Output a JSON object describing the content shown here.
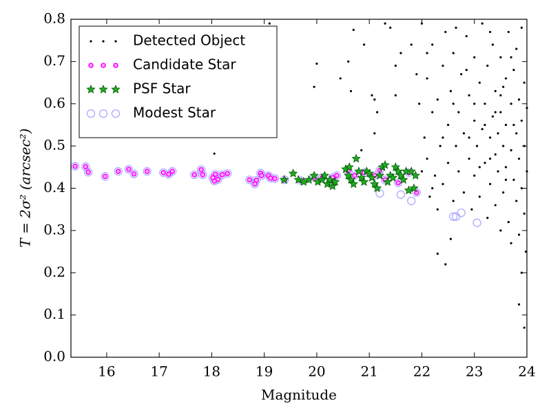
{
  "chart_data": {
    "type": "scatter",
    "x_label": "Magnitude",
    "y_label": "T = 2σ² (arcsec²)",
    "xlim": [
      15.32,
      24
    ],
    "ylim": [
      0,
      0.8
    ],
    "xticks": [
      16,
      17,
      18,
      19,
      20,
      21,
      22,
      23,
      24
    ],
    "yticks": [
      {
        "value": 0,
        "label": "0.0"
      },
      0.1,
      0.2,
      0.3,
      0.4,
      0.5,
      0.6,
      0.7,
      0.8
    ],
    "legend": "upper left",
    "series": [
      {
        "name": "Detected Object",
        "color": "#000000",
        "marker": "dot",
        "x": [
          18.05,
          19.95,
          20.0,
          20.45,
          20.6,
          20.65,
          20.7,
          20.9,
          20.85,
          21.1,
          21.15,
          21.05,
          21.1,
          21.5,
          21.6,
          21.8,
          21.3,
          21.4,
          21.5,
          22.3,
          22.45,
          22.55,
          23.85,
          23.95,
          23.9,
          23.98,
          19.2,
          19.1,
          22.0,
          22.05,
          22.1,
          22.1,
          22.15,
          22.2,
          22.2,
          22.25,
          22.3,
          22.3,
          22.35,
          22.4,
          22.4,
          22.45,
          22.5,
          22.5,
          22.55,
          22.6,
          22.6,
          22.65,
          22.7,
          22.7,
          22.75,
          22.8,
          22.8,
          22.85,
          22.9,
          22.9,
          22.95,
          23.0,
          23.0,
          23.0,
          23.05,
          23.1,
          23.1,
          23.15,
          23.15,
          23.2,
          23.2,
          23.25,
          23.25,
          23.3,
          23.3,
          23.35,
          23.35,
          23.4,
          23.4,
          23.4,
          23.45,
          23.45,
          23.5,
          23.5,
          23.5,
          23.55,
          23.55,
          23.6,
          23.6,
          23.6,
          23.65,
          23.65,
          23.7,
          23.7,
          23.7,
          23.75,
          23.75,
          23.8,
          23.8,
          23.8,
          23.85,
          23.85,
          23.85,
          23.9,
          23.9,
          23.9,
          23.95,
          23.95,
          23.95,
          24.0,
          24.0,
          23.0,
          22.9,
          23.3,
          23.5,
          23.2,
          22.6,
          22.4,
          23.6,
          23.4,
          23.1,
          22.85,
          23.75,
          23.55,
          22.1,
          22.2,
          21.95,
          22.0,
          21.9,
          23.3,
          23.7,
          22.65
        ],
        "values": [
          0.482,
          0.64,
          0.695,
          0.66,
          0.7,
          0.63,
          0.775,
          0.74,
          0.49,
          0.61,
          0.58,
          0.62,
          0.53,
          0.62,
          0.72,
          0.74,
          0.79,
          0.78,
          0.69,
          0.245,
          0.22,
          0.28,
          0.125,
          0.07,
          0.2,
          0.25,
          0.715,
          0.79,
          0.79,
          0.52,
          0.47,
          0.66,
          0.38,
          0.58,
          0.74,
          0.43,
          0.61,
          0.35,
          0.5,
          0.69,
          0.41,
          0.77,
          0.55,
          0.46,
          0.63,
          0.37,
          0.72,
          0.5,
          0.44,
          0.58,
          0.67,
          0.39,
          0.53,
          0.76,
          0.47,
          0.62,
          0.35,
          0.56,
          0.71,
          0.43,
          0.5,
          0.65,
          0.38,
          0.54,
          0.79,
          0.46,
          0.6,
          0.33,
          0.69,
          0.52,
          0.41,
          0.57,
          0.74,
          0.48,
          0.36,
          0.63,
          0.53,
          0.44,
          0.58,
          0.3,
          0.71,
          0.5,
          0.39,
          0.66,
          0.45,
          0.55,
          0.32,
          0.77,
          0.49,
          0.6,
          0.27,
          0.42,
          0.68,
          0.53,
          0.37,
          0.73,
          0.47,
          0.29,
          0.61,
          0.4,
          0.56,
          0.78,
          0.34,
          0.5,
          0.65,
          0.44,
          0.59,
          0.6,
          0.52,
          0.47,
          0.62,
          0.55,
          0.6,
          0.52,
          0.42,
          0.58,
          0.45,
          0.68,
          0.55,
          0.64,
          0.72,
          0.4,
          0.6,
          0.44,
          0.67,
          0.77,
          0.71,
          0.78
        ]
      },
      {
        "name": "Candidate Star",
        "color": "#ff00ff",
        "marker": "circle",
        "x": [
          15.4,
          15.6,
          15.65,
          15.97,
          16.22,
          16.42,
          16.52,
          16.77,
          17.08,
          17.18,
          17.25,
          17.67,
          17.8,
          17.83,
          18.02,
          18.05,
          18.07,
          18.12,
          18.2,
          18.3,
          18.72,
          18.82,
          18.85,
          18.93,
          18.95,
          19.08,
          19.12,
          19.2,
          19.39,
          19.7,
          19.95,
          20.1,
          20.3,
          20.38,
          20.6,
          20.72,
          20.9,
          21.1,
          21.2,
          21.3,
          21.55,
          21.75,
          21.9
        ],
        "values": [
          0.452,
          0.451,
          0.438,
          0.428,
          0.44,
          0.445,
          0.434,
          0.44,
          0.437,
          0.433,
          0.44,
          0.432,
          0.444,
          0.432,
          0.425,
          0.417,
          0.433,
          0.421,
          0.432,
          0.435,
          0.42,
          0.41,
          0.419,
          0.436,
          0.43,
          0.43,
          0.424,
          0.423,
          0.42,
          0.418,
          0.425,
          0.425,
          0.425,
          0.43,
          0.44,
          0.43,
          0.437,
          0.43,
          0.442,
          0.42,
          0.413,
          0.437,
          0.39
        ]
      },
      {
        "name": "PSF Star",
        "color": "#22aa22",
        "marker": "star",
        "x": [
          19.38,
          19.55,
          19.65,
          19.75,
          19.85,
          19.95,
          20.02,
          20.1,
          20.15,
          20.2,
          20.25,
          20.3,
          20.35,
          20.55,
          20.6,
          20.62,
          20.65,
          20.7,
          20.75,
          20.8,
          20.85,
          20.9,
          20.95,
          21.0,
          21.05,
          21.1,
          21.15,
          21.2,
          21.25,
          21.3,
          21.35,
          21.4,
          21.45,
          21.5,
          21.55,
          21.6,
          21.65,
          21.7,
          21.75,
          21.8,
          21.85,
          21.88
        ],
        "values": [
          0.42,
          0.435,
          0.42,
          0.415,
          0.42,
          0.43,
          0.415,
          0.42,
          0.43,
          0.41,
          0.42,
          0.405,
          0.415,
          0.445,
          0.43,
          0.45,
          0.42,
          0.41,
          0.47,
          0.44,
          0.425,
          0.415,
          0.44,
          0.435,
          0.425,
          0.41,
          0.4,
          0.43,
          0.45,
          0.455,
          0.415,
          0.43,
          0.425,
          0.45,
          0.44,
          0.43,
          0.42,
          0.44,
          0.395,
          0.44,
          0.4,
          0.43
        ]
      },
      {
        "name": "Modest Star",
        "color": "#aaaaff",
        "marker": "ring",
        "x": [
          15.4,
          15.6,
          15.65,
          15.97,
          16.22,
          16.42,
          16.52,
          16.77,
          17.08,
          17.18,
          17.25,
          17.67,
          17.8,
          17.83,
          18.02,
          18.05,
          18.07,
          18.12,
          18.2,
          18.3,
          18.72,
          18.82,
          18.85,
          18.93,
          18.95,
          19.08,
          19.12,
          19.2,
          19.39,
          19.7,
          19.95,
          20.1,
          20.3,
          20.38,
          20.6,
          20.72,
          20.9,
          21.1,
          21.2,
          21.3,
          21.55,
          21.75,
          21.9,
          21.2,
          21.6,
          21.8,
          22.6,
          22.65,
          22.75,
          23.05
        ],
        "values": [
          0.452,
          0.451,
          0.438,
          0.428,
          0.44,
          0.445,
          0.434,
          0.44,
          0.437,
          0.433,
          0.44,
          0.432,
          0.444,
          0.432,
          0.425,
          0.417,
          0.433,
          0.421,
          0.432,
          0.435,
          0.42,
          0.41,
          0.419,
          0.436,
          0.43,
          0.43,
          0.424,
          0.423,
          0.42,
          0.418,
          0.425,
          0.425,
          0.425,
          0.43,
          0.44,
          0.43,
          0.437,
          0.43,
          0.442,
          0.42,
          0.413,
          0.437,
          0.39,
          0.388,
          0.385,
          0.37,
          0.333,
          0.333,
          0.342,
          0.318
        ]
      }
    ]
  }
}
